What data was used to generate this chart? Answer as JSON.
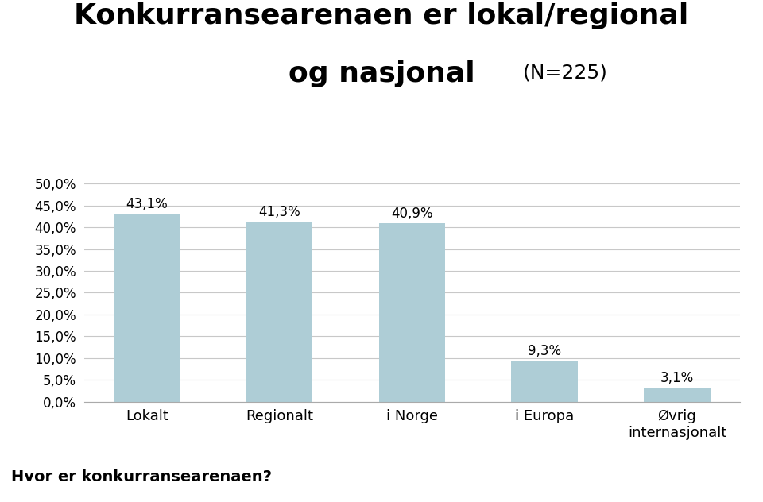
{
  "title_line1": "Konkurransearenaen er lokal/regional",
  "title_line2": "og nasjonal",
  "title_n": "(N=225)",
  "categories": [
    "Lokalt",
    "Regionalt",
    "i Norge",
    "i Europa",
    "Øvrig\ninternasjonalt"
  ],
  "values": [
    43.1,
    41.3,
    40.9,
    9.3,
    3.1
  ],
  "labels": [
    "43,1%",
    "41,3%",
    "40,9%",
    "9,3%",
    "3,1%"
  ],
  "bar_color": "#aecdd6",
  "yticks": [
    0.0,
    5.0,
    10.0,
    15.0,
    20.0,
    25.0,
    30.0,
    35.0,
    40.0,
    45.0,
    50.0
  ],
  "ytick_labels": [
    "0,0%",
    "5,0%",
    "10,0%",
    "15,0%",
    "20,0%",
    "25,0%",
    "30,0%",
    "35,0%",
    "40,0%",
    "45,0%",
    "50,0%"
  ],
  "ylim": [
    0,
    53
  ],
  "footer_text": "Hvor er konkurransearenaen?",
  "footer_bg": "#ccdce8",
  "background_color": "#ffffff",
  "grid_color": "#c8c8c8",
  "title_fontsize": 26,
  "title2_fontsize": 26,
  "n_fontsize": 18,
  "label_fontsize": 12,
  "tick_fontsize": 12,
  "xtick_fontsize": 13,
  "footer_fontsize": 14
}
